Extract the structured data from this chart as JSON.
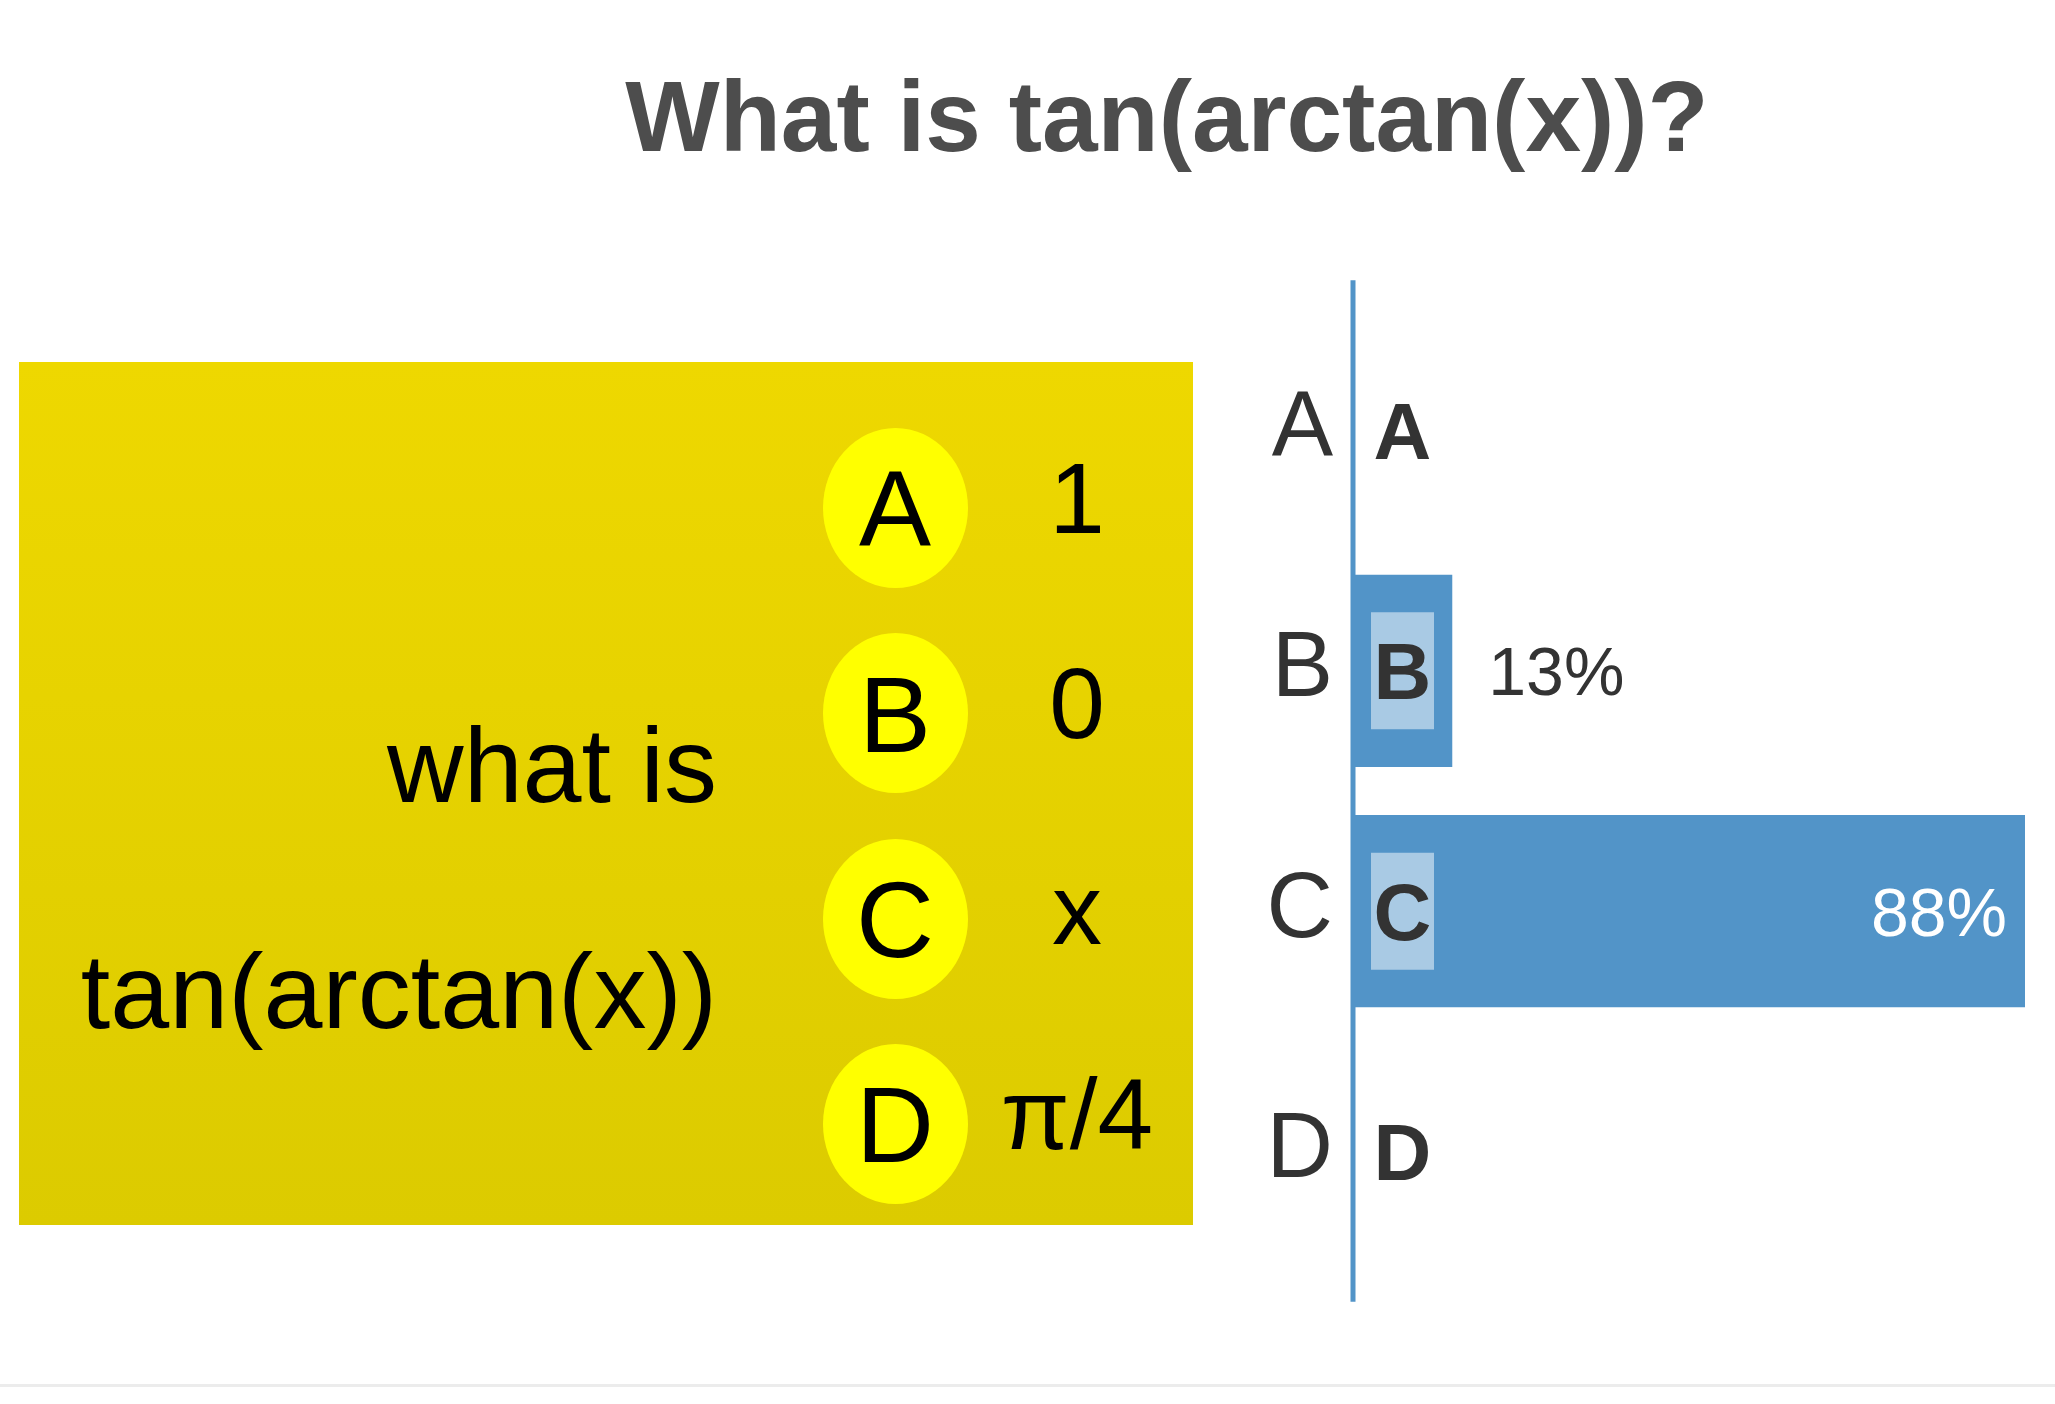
{
  "chart_data": [
    {
      "type": "other",
      "annotations": [
        "what is",
        "tan(arctan(x))"
      ],
      "categories": [
        "A",
        "B",
        "C",
        "D"
      ],
      "value_labels": [
        "1",
        "0",
        "x",
        "π/4"
      ]
    },
    {
      "type": "bar",
      "orientation": "horizontal",
      "title": "What is tan(arctan(x))?",
      "categories": [
        "A",
        "B",
        "C",
        "D"
      ],
      "values": [
        0,
        13,
        88,
        0
      ],
      "color": "#5294c8",
      "value_labels": [
        null,
        "13%",
        "88%",
        null
      ],
      "xlim": [
        0,
        88
      ],
      "tick_labels": "y"
    }
  ]
}
